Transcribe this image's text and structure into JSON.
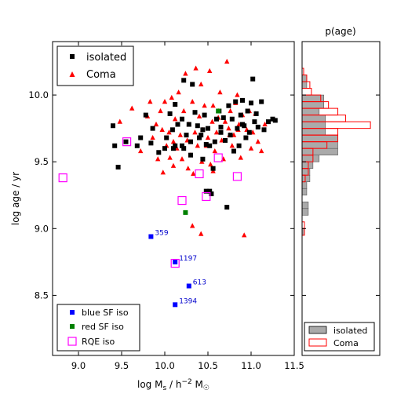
{
  "chart_data": [
    {
      "type": "scatter",
      "xlabel": "log M_s / h^-2 M_☉",
      "ylabel": "log age / yr",
      "xlim": [
        8.7,
        11.5
      ],
      "ylim": [
        8.05,
        10.4
      ],
      "xticks": [
        9.0,
        9.5,
        10.0,
        10.5,
        11.0,
        11.5
      ],
      "yticks": [
        8.5,
        9.0,
        9.5,
        10.0
      ],
      "legend_top": {
        "placement": "top-left",
        "entries": [
          "isolated",
          "Coma"
        ]
      },
      "legend_bottom": {
        "placement": "bottom-left",
        "entries": [
          "blue SF iso",
          "red SF iso",
          "RQE iso"
        ]
      },
      "series": [
        {
          "name": "isolated",
          "marker": "square",
          "color": "#000000",
          "points": [
            [
              9.4,
              9.77
            ],
            [
              9.42,
              9.62
            ],
            [
              9.46,
              9.46
            ],
            [
              9.55,
              9.65
            ],
            [
              9.68,
              9.62
            ],
            [
              9.72,
              9.68
            ],
            [
              9.78,
              9.85
            ],
            [
              9.84,
              9.64
            ],
            [
              9.86,
              9.75
            ],
            [
              9.93,
              9.57
            ],
            [
              10.0,
              9.6
            ],
            [
              10.02,
              9.68
            ],
            [
              10.06,
              9.86
            ],
            [
              10.09,
              9.74
            ],
            [
              10.1,
              9.6
            ],
            [
              10.12,
              9.62
            ],
            [
              10.12,
              9.93
            ],
            [
              10.15,
              9.78
            ],
            [
              10.2,
              9.82
            ],
            [
              10.2,
              9.62
            ],
            [
              10.22,
              9.6
            ],
            [
              10.22,
              10.11
            ],
            [
              10.25,
              9.7
            ],
            [
              10.28,
              9.78
            ],
            [
              10.3,
              9.65
            ],
            [
              10.3,
              9.55
            ],
            [
              10.32,
              10.08
            ],
            [
              10.35,
              9.87
            ],
            [
              10.38,
              9.77
            ],
            [
              10.4,
              9.68
            ],
            [
              10.42,
              9.7
            ],
            [
              10.44,
              9.52
            ],
            [
              10.46,
              9.85
            ],
            [
              10.48,
              9.63
            ],
            [
              10.5,
              9.75
            ],
            [
              10.52,
              9.62
            ],
            [
              10.54,
              9.26
            ],
            [
              10.56,
              9.45
            ],
            [
              10.58,
              9.65
            ],
            [
              10.6,
              9.82
            ],
            [
              10.63,
              9.88
            ],
            [
              10.65,
              9.72
            ],
            [
              10.68,
              9.83
            ],
            [
              10.7,
              9.66
            ],
            [
              10.72,
              9.16
            ],
            [
              10.74,
              9.92
            ],
            [
              10.76,
              9.7
            ],
            [
              10.78,
              9.82
            ],
            [
              10.8,
              9.58
            ],
            [
              10.82,
              9.95
            ],
            [
              10.84,
              9.75
            ],
            [
              10.86,
              9.62
            ],
            [
              10.88,
              9.85
            ],
            [
              10.9,
              9.96
            ],
            [
              10.92,
              9.77
            ],
            [
              10.94,
              9.68
            ],
            [
              10.96,
              9.88
            ],
            [
              10.98,
              9.72
            ],
            [
              11.0,
              9.94
            ],
            [
              11.02,
              10.12
            ],
            [
              11.04,
              9.8
            ],
            [
              11.06,
              9.86
            ],
            [
              11.08,
              9.76
            ],
            [
              11.12,
              9.95
            ],
            [
              11.15,
              9.74
            ],
            [
              11.2,
              9.8
            ],
            [
              11.25,
              9.82
            ],
            [
              11.28,
              9.81
            ],
            [
              10.48,
              9.28
            ],
            [
              10.52,
              9.28
            ],
            [
              10.44,
              9.74
            ],
            [
              10.65,
              9.76
            ],
            [
              10.9,
              9.78
            ]
          ]
        },
        {
          "name": "Coma",
          "marker": "triangle",
          "color": "#ff0000",
          "points": [
            [
              9.48,
              9.8
            ],
            [
              9.62,
              9.9
            ],
            [
              9.72,
              9.58
            ],
            [
              9.8,
              9.84
            ],
            [
              9.83,
              9.95
            ],
            [
              9.86,
              9.68
            ],
            [
              9.9,
              9.78
            ],
            [
              9.92,
              9.52
            ],
            [
              9.95,
              9.88
            ],
            [
              9.97,
              9.74
            ],
            [
              10.0,
              9.95
            ],
            [
              10.02,
              9.62
            ],
            [
              10.05,
              9.72
            ],
            [
              10.08,
              9.98
            ],
            [
              10.1,
              9.47
            ],
            [
              10.12,
              9.82
            ],
            [
              10.14,
              9.6
            ],
            [
              10.16,
              10.02
            ],
            [
              10.18,
              9.7
            ],
            [
              10.2,
              9.52
            ],
            [
              10.22,
              9.88
            ],
            [
              10.24,
              10.16
            ],
            [
              10.26,
              9.66
            ],
            [
              10.28,
              9.78
            ],
            [
              10.3,
              9.55
            ],
            [
              10.32,
              9.95
            ],
            [
              10.33,
              9.41
            ],
            [
              10.35,
              9.72
            ],
            [
              10.36,
              10.2
            ],
            [
              10.38,
              9.62
            ],
            [
              10.4,
              9.84
            ],
            [
              10.42,
              10.08
            ],
            [
              10.43,
              9.5
            ],
            [
              10.44,
              9.74
            ],
            [
              10.46,
              9.92
            ],
            [
              10.48,
              9.62
            ],
            [
              10.5,
              9.68
            ],
            [
              10.52,
              10.18
            ],
            [
              10.53,
              9.48
            ],
            [
              10.55,
              9.8
            ],
            [
              10.56,
              9.92
            ],
            [
              10.58,
              9.58
            ],
            [
              10.6,
              9.72
            ],
            [
              10.62,
              9.88
            ],
            [
              10.64,
              10.02
            ],
            [
              10.66,
              9.66
            ],
            [
              10.68,
              9.52
            ],
            [
              10.7,
              9.8
            ],
            [
              10.72,
              10.25
            ],
            [
              10.74,
              9.75
            ],
            [
              10.76,
              9.88
            ],
            [
              10.78,
              9.62
            ],
            [
              10.8,
              9.7
            ],
            [
              10.82,
              9.94
            ],
            [
              10.84,
              10.0
            ],
            [
              10.86,
              9.78
            ],
            [
              10.88,
              9.53
            ],
            [
              10.9,
              9.85
            ],
            [
              10.92,
              8.95
            ],
            [
              10.95,
              9.74
            ],
            [
              10.98,
              9.88
            ],
            [
              11.0,
              9.6
            ],
            [
              11.02,
              9.72
            ],
            [
              11.05,
              9.86
            ],
            [
              11.08,
              9.65
            ],
            [
              11.12,
              9.58
            ],
            [
              11.16,
              9.78
            ],
            [
              9.98,
              9.42
            ],
            [
              10.06,
              9.53
            ],
            [
              10.27,
              9.45
            ],
            [
              10.42,
              8.96
            ],
            [
              10.32,
              9.02
            ],
            [
              10.1,
              9.65
            ],
            [
              10.62,
              9.83
            ],
            [
              10.56,
              9.43
            ],
            [
              10.75,
              9.7
            ],
            [
              10.85,
              9.74
            ]
          ]
        },
        {
          "name": "blue SF iso",
          "marker": "square",
          "color": "#0000ff",
          "points": [
            [
              9.84,
              8.94
            ],
            [
              10.12,
              8.75
            ],
            [
              10.28,
              8.57
            ],
            [
              10.12,
              8.43
            ]
          ],
          "annotations": [
            {
              "x": 9.84,
              "y": 8.94,
              "label": "359"
            },
            {
              "x": 10.12,
              "y": 8.75,
              "label": "1197"
            },
            {
              "x": 10.28,
              "y": 8.57,
              "label": "613"
            },
            {
              "x": 10.12,
              "y": 8.43,
              "label": "1394"
            }
          ]
        },
        {
          "name": "red SF iso",
          "marker": "square",
          "color": "#008000",
          "points": [
            [
              10.24,
              9.12
            ],
            [
              10.62,
              9.88
            ]
          ]
        },
        {
          "name": "RQE iso",
          "marker": "open-square",
          "color": "#ff00ff",
          "points": [
            [
              8.82,
              9.38
            ],
            [
              9.56,
              9.65
            ],
            [
              10.12,
              8.74
            ],
            [
              10.2,
              9.21
            ],
            [
              10.4,
              9.41
            ],
            [
              10.48,
              9.24
            ],
            [
              10.62,
              9.53
            ],
            [
              10.84,
              9.39
            ]
          ]
        }
      ]
    },
    {
      "type": "histogram",
      "title": "p(age)",
      "orientation": "horizontal",
      "ylim": [
        8.05,
        10.4
      ],
      "xlim": [
        0,
        1.0
      ],
      "bin_width": 0.05,
      "legend": {
        "placement": "bottom-right",
        "entries": [
          "isolated",
          "Coma"
        ]
      },
      "series": [
        {
          "name": "isolated",
          "style": "filled-gray",
          "bins": [
            {
              "y0": 8.95,
              "y1": 9.0,
              "value": 0.03
            },
            {
              "y0": 9.1,
              "y1": 9.15,
              "value": 0.08
            },
            {
              "y0": 9.15,
              "y1": 9.2,
              "value": 0.08
            },
            {
              "y0": 9.25,
              "y1": 9.3,
              "value": 0.06
            },
            {
              "y0": 9.3,
              "y1": 9.35,
              "value": 0.06
            },
            {
              "y0": 9.35,
              "y1": 9.4,
              "value": 0.1
            },
            {
              "y0": 9.4,
              "y1": 9.45,
              "value": 0.1
            },
            {
              "y0": 9.45,
              "y1": 9.5,
              "value": 0.14
            },
            {
              "y0": 9.5,
              "y1": 9.55,
              "value": 0.22
            },
            {
              "y0": 9.55,
              "y1": 9.6,
              "value": 0.46
            },
            {
              "y0": 9.6,
              "y1": 9.65,
              "value": 0.46
            },
            {
              "y0": 9.65,
              "y1": 9.7,
              "value": 0.46
            },
            {
              "y0": 9.7,
              "y1": 9.75,
              "value": 0.3
            },
            {
              "y0": 9.75,
              "y1": 9.8,
              "value": 0.3
            },
            {
              "y0": 9.8,
              "y1": 9.85,
              "value": 0.3
            },
            {
              "y0": 9.85,
              "y1": 9.9,
              "value": 0.22
            },
            {
              "y0": 9.9,
              "y1": 9.95,
              "value": 0.28
            },
            {
              "y0": 9.95,
              "y1": 10.0,
              "value": 0.28
            },
            {
              "y0": 10.05,
              "y1": 10.1,
              "value": 0.06
            },
            {
              "y0": 10.1,
              "y1": 10.15,
              "value": 0.06
            }
          ]
        },
        {
          "name": "Coma",
          "style": "red-outline",
          "bins": [
            {
              "y0": 8.95,
              "y1": 9.0,
              "value": 0.03
            },
            {
              "y0": 9.0,
              "y1": 9.05,
              "value": 0.03
            },
            {
              "y0": 9.35,
              "y1": 9.4,
              "value": 0.04
            },
            {
              "y0": 9.4,
              "y1": 9.45,
              "value": 0.08
            },
            {
              "y0": 9.45,
              "y1": 9.5,
              "value": 0.08
            },
            {
              "y0": 9.5,
              "y1": 9.55,
              "value": 0.14
            },
            {
              "y0": 9.55,
              "y1": 9.6,
              "value": 0.14
            },
            {
              "y0": 9.6,
              "y1": 9.65,
              "value": 0.32
            },
            {
              "y0": 9.65,
              "y1": 9.7,
              "value": 0.46
            },
            {
              "y0": 9.7,
              "y1": 9.75,
              "value": 0.46
            },
            {
              "y0": 9.75,
              "y1": 9.8,
              "value": 0.88
            },
            {
              "y0": 9.8,
              "y1": 9.85,
              "value": 0.56
            },
            {
              "y0": 9.85,
              "y1": 9.9,
              "value": 0.46
            },
            {
              "y0": 9.9,
              "y1": 9.95,
              "value": 0.34
            },
            {
              "y0": 9.95,
              "y1": 10.0,
              "value": 0.24
            },
            {
              "y0": 10.0,
              "y1": 10.05,
              "value": 0.12
            },
            {
              "y0": 10.05,
              "y1": 10.1,
              "value": 0.1
            },
            {
              "y0": 10.1,
              "y1": 10.15,
              "value": 0.06
            },
            {
              "y0": 10.15,
              "y1": 10.2,
              "value": 0.02
            }
          ]
        }
      ]
    }
  ]
}
